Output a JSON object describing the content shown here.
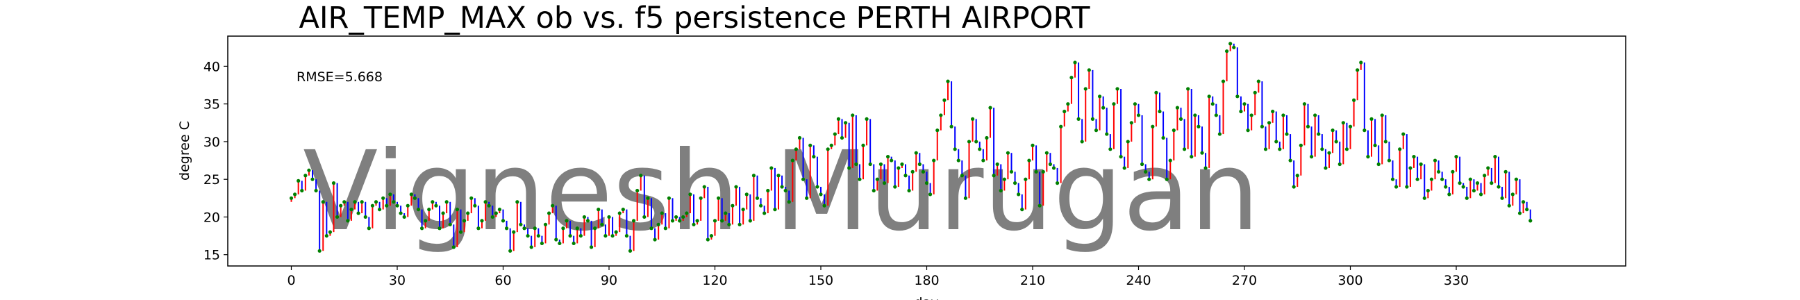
{
  "chart_data": {
    "type": "line",
    "title": "AIR_TEMP_MAX  ob vs. f5  persistence  PERTH AIRPORT",
    "xlabel": "day",
    "ylabel": "degree C",
    "annotation": "RMSE=5.668",
    "watermark": "Vignesh Murugan",
    "xlim": [
      -18,
      378
    ],
    "ylim": [
      13.5,
      44
    ],
    "xticks": [
      0,
      30,
      60,
      90,
      120,
      150,
      180,
      210,
      240,
      270,
      300,
      330
    ],
    "yticks": [
      15,
      20,
      25,
      30,
      35,
      40
    ],
    "grid": false,
    "legend": "none",
    "colors": {
      "rise": "#ff0000",
      "fall": "#0000ff",
      "observed": "#008000",
      "axes": "#000000"
    },
    "series": [
      {
        "label": "observed",
        "values": [
          22.5,
          23,
          24.8,
          23.5,
          25.5,
          26.2,
          25,
          23.5,
          15.5,
          22,
          17.5,
          18,
          24.5,
          20,
          21.5,
          22,
          19.5,
          21,
          22,
          20.5,
          22,
          20,
          18.5,
          21.5,
          22,
          21,
          22.5,
          21.5,
          23,
          22,
          21.5,
          20.5,
          20,
          21.5,
          23,
          22.5,
          21,
          18.5,
          19.5,
          21,
          22,
          21.5,
          18.5,
          20.5,
          22,
          19,
          16,
          21,
          18,
          19.5,
          20.5,
          22.5,
          21.5,
          18.5,
          19.5,
          22,
          21.5,
          20,
          20.5,
          21,
          19.5,
          18.5,
          15.5,
          18,
          22,
          19,
          18.5,
          17.5,
          16,
          18.5,
          17.5,
          16.5,
          19,
          20.5,
          21.5,
          17,
          16.5,
          18.5,
          19.5,
          17.5,
          16.5,
          18.5,
          17.5,
          20,
          19.5,
          16,
          18.5,
          21,
          19,
          17.5,
          20,
          17.5,
          18,
          20.5,
          21,
          17.5,
          15.5,
          19.5,
          23.5,
          25.5,
          20,
          22.5,
          18.5,
          17,
          19,
          20.5,
          18.5,
          22.5,
          19.5,
          20,
          19.5,
          20,
          20.5,
          23,
          19,
          19.5,
          22.5,
          24,
          17,
          17.5,
          19.5,
          22.5,
          19.5,
          20.5,
          19,
          21.5,
          24,
          19,
          21,
          23,
          19.5,
          25.5,
          22.5,
          21.5,
          20.5,
          23.5,
          26.5,
          21,
          25.5,
          24,
          23.5,
          22,
          27.5,
          29,
          30.5,
          25,
          22.5,
          29.5,
          28,
          24,
          23,
          21.5,
          29,
          29.5,
          31,
          33,
          30.5,
          32.5,
          26.5,
          33.5,
          27,
          25,
          29.5,
          33,
          27,
          23.5,
          25,
          27,
          24.5,
          28,
          27.5,
          24,
          26.5,
          27,
          25.5,
          23.5,
          26,
          28.5,
          27,
          26,
          24.5,
          23,
          27.5,
          31.5,
          33.5,
          35.5,
          38,
          32,
          29,
          27.5,
          25.5,
          22.5,
          30,
          33,
          30,
          29,
          27.5,
          30.5,
          34.5,
          25.5,
          27,
          23.5,
          25,
          28.5,
          26,
          24.5,
          23,
          21,
          25,
          27.5,
          29.5,
          26,
          21.5,
          26,
          28.5,
          27,
          26.5,
          24.5,
          32,
          34,
          35,
          38.5,
          40.5,
          33,
          30,
          37,
          39.5,
          33,
          31.5,
          36,
          34.5,
          31,
          29,
          35,
          37,
          28,
          26.5,
          30,
          32.5,
          35,
          33.5,
          27,
          26,
          25,
          32,
          36.5,
          34,
          30.5,
          25,
          27.5,
          31.5,
          34.5,
          33,
          29,
          37,
          28,
          33.5,
          32,
          28.5,
          26.5,
          36,
          35,
          33.5,
          31,
          38,
          42,
          43,
          42.5,
          36,
          34,
          35,
          31.5,
          33.5,
          36.5,
          38,
          32,
          29,
          32.5,
          34,
          30,
          29,
          33.5,
          31,
          27.5,
          24,
          25.5,
          29.5,
          35,
          32,
          28,
          33.5,
          31,
          29,
          26.5,
          28.5,
          31.5,
          30,
          27,
          32.5,
          29,
          32,
          35.5,
          39.5,
          40.5,
          31.5,
          28,
          33,
          29.5,
          27,
          33.5,
          30,
          27.5,
          25,
          24,
          29,
          31,
          24,
          26.5,
          28,
          25,
          27,
          22.5,
          23.5,
          25,
          27.5,
          26,
          25,
          24,
          23,
          26,
          28,
          24.5,
          24,
          22.5,
          25,
          23.5,
          24.5,
          23,
          25.5,
          26.5,
          24.5,
          28,
          24,
          22.5,
          26,
          21.5,
          23,
          25,
          20.5,
          22,
          21,
          19.5
        ]
      },
      {
        "label": "f5 persistence",
        "values": [
          22,
          22.5,
          23,
          24.8,
          23.5,
          25.5,
          26.2,
          25,
          23.5,
          15.5,
          22,
          17.5,
          18,
          24.5,
          20,
          21.5,
          22,
          19.5,
          21,
          22,
          20.5,
          22,
          20,
          18.5,
          21.5,
          22,
          21,
          22.5,
          21.5,
          23,
          22,
          21.5,
          20.5,
          20,
          21.5,
          23,
          22.5,
          21,
          18.5,
          19.5,
          21,
          22,
          21.5,
          18.5,
          20.5,
          22,
          19,
          16,
          21,
          18,
          19.5,
          20.5,
          22.5,
          21.5,
          18.5,
          19.5,
          22,
          21.5,
          20,
          20.5,
          21,
          19.5,
          18.5,
          15.5,
          18,
          22,
          19,
          18.5,
          17.5,
          16,
          18.5,
          17.5,
          16.5,
          19,
          20.5,
          21.5,
          17,
          16.5,
          18.5,
          19.5,
          17.5,
          16.5,
          18.5,
          17.5,
          20,
          19.5,
          16,
          18.5,
          21,
          19,
          17.5,
          20,
          17.5,
          18,
          20.5,
          21,
          17.5,
          15.5,
          19.5,
          23.5,
          25.5,
          20,
          22.5,
          18.5,
          17,
          19,
          20.5,
          18.5,
          22.5,
          19.5,
          20,
          19.5,
          20,
          20.5,
          23,
          19,
          19.5,
          22.5,
          24,
          17,
          17.5,
          19.5,
          22.5,
          19.5,
          20.5,
          19,
          21.5,
          24,
          19,
          21,
          23,
          19.5,
          25.5,
          22.5,
          21.5,
          20.5,
          23.5,
          26.5,
          21,
          25.5,
          24,
          23.5,
          22,
          27.5,
          29,
          30.5,
          25,
          22.5,
          29.5,
          28,
          24,
          23,
          21.5,
          29,
          29.5,
          31,
          33,
          30.5,
          32.5,
          26.5,
          33.5,
          27,
          25,
          29.5,
          33,
          27,
          23.5,
          25,
          27,
          24.5,
          28,
          27.5,
          24,
          26.5,
          27,
          25.5,
          23.5,
          26,
          28.5,
          27,
          26,
          24.5,
          23,
          27.5,
          31.5,
          33.5,
          35.5,
          38,
          32,
          29,
          27.5,
          25.5,
          22.5,
          30,
          33,
          30,
          29,
          27.5,
          30.5,
          34.5,
          25.5,
          27,
          23.5,
          25,
          28.5,
          26,
          24.5,
          23,
          21,
          25,
          27.5,
          29.5,
          26,
          21.5,
          26,
          28.5,
          27,
          26.5,
          24.5,
          32,
          34,
          35,
          38.5,
          40.5,
          33,
          30,
          37,
          39.5,
          33,
          31.5,
          36,
          34.5,
          31,
          29,
          35,
          37,
          28,
          26.5,
          30,
          32.5,
          35,
          33.5,
          27,
          26,
          25,
          32,
          36.5,
          34,
          30.5,
          25,
          27.5,
          31.5,
          34.5,
          33,
          29,
          37,
          28,
          33.5,
          32,
          28.5,
          26.5,
          36,
          35,
          33.5,
          31,
          38,
          42,
          43,
          42.5,
          36,
          34,
          35,
          31.5,
          33.5,
          36.5,
          38,
          32,
          29,
          32.5,
          34,
          30,
          29,
          33.5,
          31,
          27.5,
          24,
          25.5,
          29.5,
          35,
          32,
          28,
          33.5,
          31,
          29,
          26.5,
          28.5,
          31.5,
          30,
          27,
          32.5,
          29,
          32,
          35.5,
          39.5,
          40.5,
          31.5,
          28,
          33,
          29.5,
          27,
          33.5,
          30,
          27.5,
          25,
          24,
          29,
          31,
          24,
          26.5,
          28,
          25,
          27,
          22.5,
          23.5,
          25,
          27.5,
          26,
          25,
          24,
          23,
          26,
          28,
          24.5,
          24,
          22.5,
          25,
          23.5,
          24.5,
          23,
          25.5,
          26.5,
          24.5,
          28,
          24,
          22.5,
          26,
          21.5,
          23,
          25,
          20.5,
          22,
          21
        ]
      }
    ]
  }
}
